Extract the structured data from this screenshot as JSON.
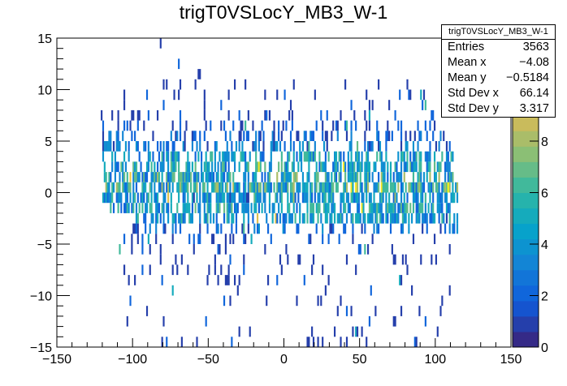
{
  "chart_data": {
    "type": "heatmap",
    "title": "trigT0VSLocY_MB3_W-1",
    "xlabel": "",
    "ylabel": "",
    "xlim": [
      -150,
      150
    ],
    "ylim": [
      -15,
      15
    ],
    "zlim": [
      0,
      12
    ],
    "x_ticks": [
      -150,
      -100,
      -50,
      0,
      50,
      100,
      150
    ],
    "y_ticks": [
      -15,
      -10,
      -5,
      0,
      5,
      10,
      15
    ],
    "z_ticks": [
      0,
      2,
      4,
      6,
      8
    ],
    "bin_width": {
      "x": 1,
      "y": 1
    },
    "palette": [
      "#352a87",
      "#0f5cdd",
      "#1481d6",
      "#06a4ca",
      "#2eb7a4",
      "#87bf77",
      "#d1bb59",
      "#fec832",
      "#f9fb0e"
    ],
    "row_profiles": [
      {
        "y": 14,
        "xmin": -83,
        "xmax": -81,
        "occupancy": 0.5,
        "mean_count": 1
      },
      {
        "y": 12,
        "xmin": -72,
        "xmax": -68,
        "occupancy": 0.3,
        "mean_count": 1
      },
      {
        "y": 11,
        "xmin": -60,
        "xmax": -55,
        "occupancy": 0.3,
        "mean_count": 1
      },
      {
        "y": 10,
        "xmin": -120,
        "xmax": 100,
        "occupancy": 0.04,
        "mean_count": 1
      },
      {
        "y": 9,
        "xmin": -120,
        "xmax": 100,
        "occupancy": 0.05,
        "mean_count": 1
      },
      {
        "y": 8,
        "xmin": -120,
        "xmax": 95,
        "occupancy": 0.06,
        "mean_count": 1
      },
      {
        "y": 7,
        "xmin": -122,
        "xmax": 100,
        "occupancy": 0.09,
        "mean_count": 1.2
      },
      {
        "y": 6,
        "xmin": -122,
        "xmax": 100,
        "occupancy": 0.18,
        "mean_count": 1.4
      },
      {
        "y": 5,
        "xmin": -122,
        "xmax": 110,
        "occupancy": 0.3,
        "mean_count": 1.8
      },
      {
        "y": 4,
        "xmin": -120,
        "xmax": 112,
        "occupancy": 0.35,
        "mean_count": 2.6
      },
      {
        "y": 3,
        "xmin": -120,
        "xmax": 112,
        "occupancy": 0.45,
        "mean_count": 3.8
      },
      {
        "y": 2,
        "xmin": -120,
        "xmax": 112,
        "occupancy": 0.55,
        "mean_count": 4.2
      },
      {
        "y": 1,
        "xmin": -120,
        "xmax": 112,
        "occupancy": 0.6,
        "mean_count": 4.5
      },
      {
        "y": 0,
        "xmin": -118,
        "xmax": 115,
        "occupancy": 0.7,
        "mean_count": 4.8
      },
      {
        "y": -1,
        "xmin": -120,
        "xmax": 115,
        "occupancy": 0.6,
        "mean_count": 3.5
      },
      {
        "y": -2,
        "xmin": -115,
        "xmax": 115,
        "occupancy": 0.55,
        "mean_count": 4.0
      },
      {
        "y": -3,
        "xmin": -100,
        "xmax": 115,
        "occupancy": 0.5,
        "mean_count": 3.6
      },
      {
        "y": -4,
        "xmin": -100,
        "xmax": 115,
        "occupancy": 0.3,
        "mean_count": 2.2
      },
      {
        "y": -5,
        "xmin": -110,
        "xmax": 110,
        "occupancy": 0.1,
        "mean_count": 1.3
      },
      {
        "y": -6,
        "xmin": -110,
        "xmax": 110,
        "occupancy": 0.08,
        "mean_count": 1
      },
      {
        "y": -7,
        "xmin": -110,
        "xmax": 110,
        "occupancy": 0.08,
        "mean_count": 1
      },
      {
        "y": -8,
        "xmin": -110,
        "xmax": 110,
        "occupancy": 0.07,
        "mean_count": 1
      },
      {
        "y": -9,
        "xmin": -110,
        "xmax": 110,
        "occupancy": 0.06,
        "mean_count": 1
      },
      {
        "y": -10,
        "xmin": -110,
        "xmax": 110,
        "occupancy": 0.05,
        "mean_count": 1
      },
      {
        "y": -11,
        "xmin": -110,
        "xmax": 110,
        "occupancy": 0.05,
        "mean_count": 1
      },
      {
        "y": -12,
        "xmin": -110,
        "xmax": 110,
        "occupancy": 0.04,
        "mean_count": 1
      },
      {
        "y": -13,
        "xmin": -110,
        "xmax": 110,
        "occupancy": 0.04,
        "mean_count": 1
      },
      {
        "y": -14,
        "xmin": -110,
        "xmax": 110,
        "occupancy": 0.03,
        "mean_count": 1
      },
      {
        "y": -15,
        "xmin": -115,
        "xmax": 100,
        "occupancy": 0.03,
        "mean_count": 1
      }
    ],
    "stats": {
      "name": "trigT0VSLocY_MB3_W-1",
      "entries_label": "Entries",
      "entries": "3563",
      "meanx_label": "Mean x",
      "meanx": "−4.08",
      "meany_label": "Mean y",
      "meany": "−0.5184",
      "stdx_label": "Std Dev x",
      "stdx": "66.14",
      "stdy_label": "Std Dev y",
      "stdy": "3.317"
    }
  }
}
